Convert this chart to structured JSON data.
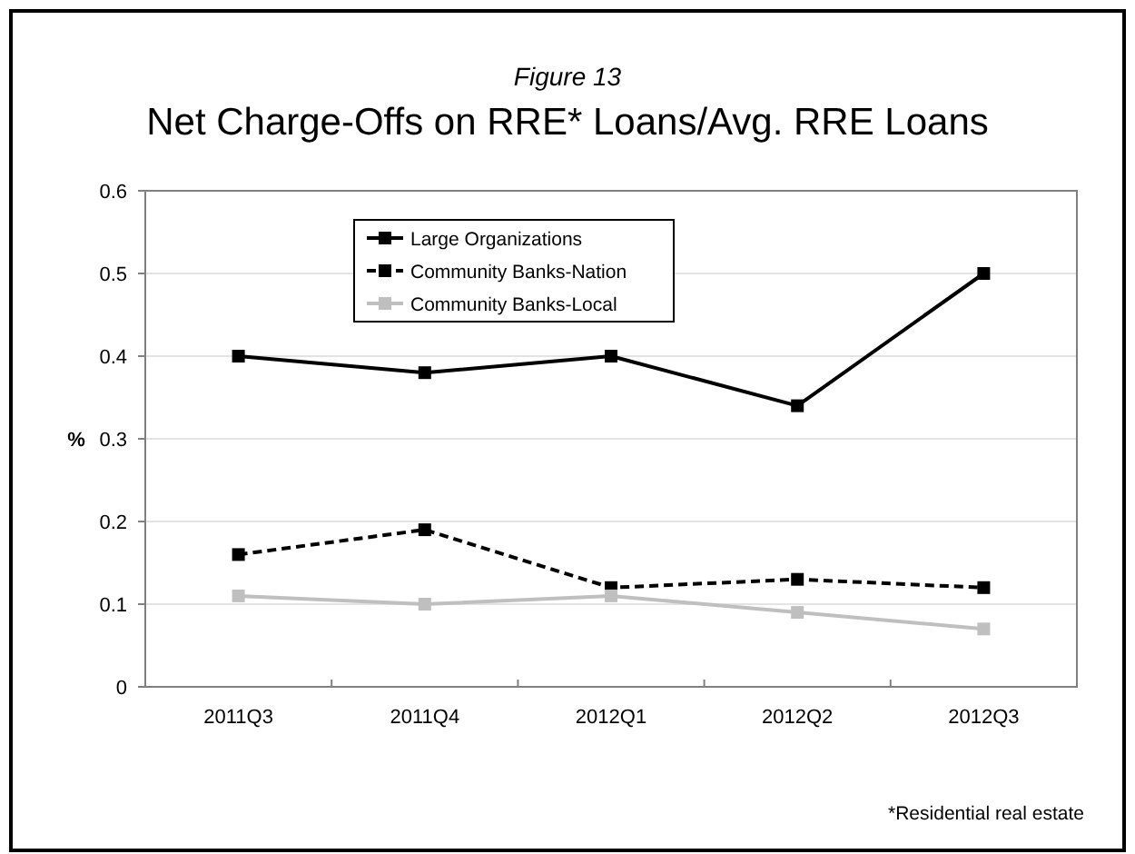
{
  "chart_data": {
    "type": "line",
    "subtitle": "Figure 13",
    "title": "Net Charge-Offs on RRE* Loans/Avg. RRE Loans",
    "ylabel": "%",
    "categories": [
      "2011Q3",
      "2011Q4",
      "2012Q1",
      "2012Q2",
      "2012Q3"
    ],
    "series": [
      {
        "name": "Large Organizations",
        "color": "#000000",
        "values": [
          0.4,
          0.38,
          0.4,
          0.34,
          0.5
        ],
        "line_style": "solid"
      },
      {
        "name": "Community Banks-Nation",
        "color": "#000000",
        "values": [
          0.16,
          0.19,
          0.12,
          0.13,
          0.12
        ],
        "line_style": "dashed"
      },
      {
        "name": "Community Banks-Local",
        "color": "#bfbfbf",
        "values": [
          0.11,
          0.1,
          0.11,
          0.09,
          0.07
        ],
        "line_style": "solid"
      }
    ],
    "ylim": [
      0,
      0.6
    ],
    "yticks": [
      0,
      0.1,
      0.2,
      0.3,
      0.4,
      0.5,
      0.6
    ],
    "grid": "y",
    "legend": "top left",
    "marker": "square",
    "annotations": [
      "*Residential real estate"
    ]
  }
}
